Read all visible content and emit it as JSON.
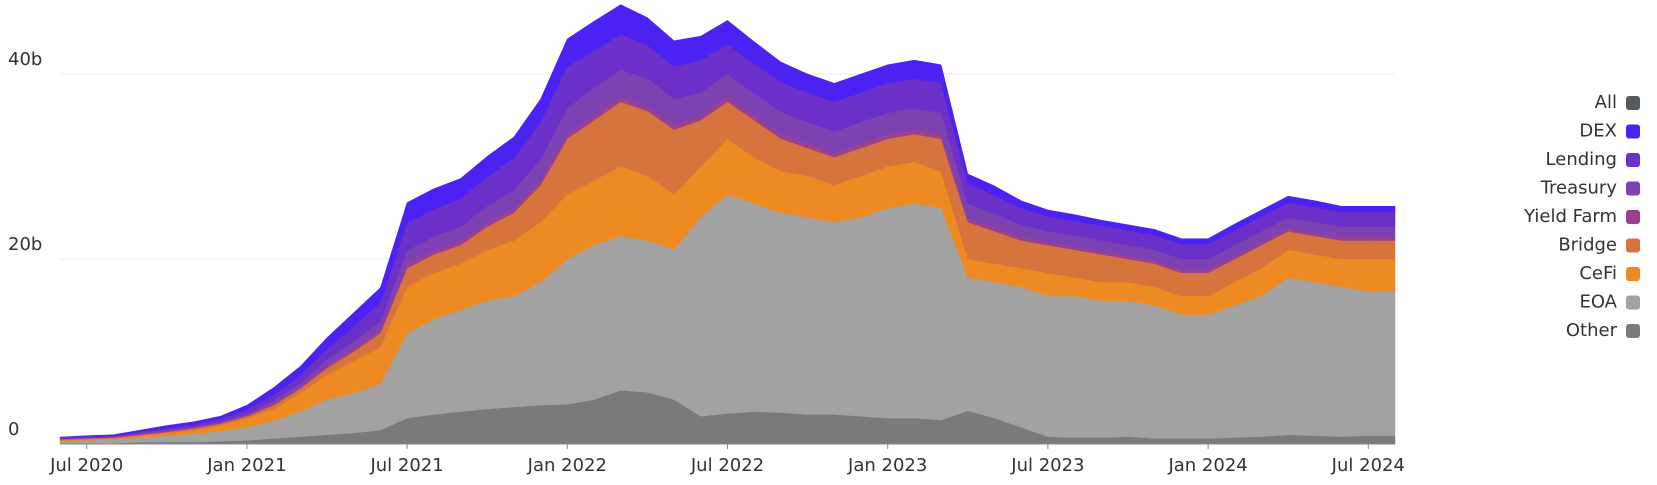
{
  "chart_data": {
    "type": "stacked_area",
    "x": [
      "2020-06",
      "2020-07",
      "2020-08",
      "2020-09",
      "2020-10",
      "2020-11",
      "2020-12",
      "2021-01",
      "2021-02",
      "2021-03",
      "2021-04",
      "2021-05",
      "2021-06",
      "2021-07",
      "2021-08",
      "2021-09",
      "2021-10",
      "2021-11",
      "2021-12",
      "2022-01",
      "2022-02",
      "2022-03",
      "2022-04",
      "2022-05",
      "2022-06",
      "2022-07",
      "2022-08",
      "2022-09",
      "2022-10",
      "2022-11",
      "2022-12",
      "2023-01",
      "2023-02",
      "2023-03",
      "2023-04",
      "2023-05",
      "2023-06",
      "2023-07",
      "2023-08",
      "2023-09",
      "2023-10",
      "2023-11",
      "2023-12",
      "2024-01",
      "2024-02",
      "2024-03",
      "2024-04",
      "2024-05",
      "2024-06",
      "2024-07",
      "2024-08"
    ],
    "xticks": [
      {
        "value": "2020-07",
        "label": "Jul 2020"
      },
      {
        "value": "2021-01",
        "label": "Jan 2021"
      },
      {
        "value": "2021-07",
        "label": "Jul 2021"
      },
      {
        "value": "2022-01",
        "label": "Jan 2022"
      },
      {
        "value": "2022-07",
        "label": "Jul 2022"
      },
      {
        "value": "2023-01",
        "label": "Jan 2023"
      },
      {
        "value": "2023-07",
        "label": "Jul 2023"
      },
      {
        "value": "2024-01",
        "label": "Jan 2024"
      },
      {
        "value": "2024-07",
        "label": "Jul 2024"
      }
    ],
    "ylim": [
      0,
      48
    ],
    "yticks": [
      0,
      {
        "value": 20,
        "label": "20b"
      },
      {
        "value": 40,
        "label": "40b"
      }
    ],
    "grid": true,
    "legend": "right",
    "legend_all": {
      "name": "All",
      "color": "#555a5f"
    },
    "series": [
      {
        "name": "DEX",
        "color": "#4b22f2",
        "values": [
          0.05,
          0.1,
          0.1,
          0.2,
          0.3,
          0.3,
          0.3,
          0.5,
          0.8,
          1.0,
          1.2,
          1.5,
          1.6,
          2.2,
          2.2,
          2.2,
          2.2,
          2.3,
          2.5,
          3.0,
          3.2,
          3.2,
          3.0,
          2.8,
          2.6,
          2.6,
          2.4,
          2.2,
          2.0,
          2.0,
          2.0,
          2.0,
          2.0,
          2.0,
          1.0,
          1.0,
          0.8,
          0.7,
          0.7,
          0.6,
          0.6,
          0.6,
          0.6,
          0.6,
          0.7,
          0.7,
          0.7,
          0.7,
          0.6,
          0.6,
          0.6
        ]
      },
      {
        "name": "Lending",
        "color": "#6a30c8",
        "values": [
          0.1,
          0.1,
          0.1,
          0.1,
          0.2,
          0.2,
          0.3,
          0.4,
          0.6,
          0.8,
          1.2,
          1.6,
          2.0,
          3.0,
          3.0,
          3.0,
          3.2,
          3.5,
          4.0,
          4.5,
          4.0,
          3.8,
          3.6,
          3.5,
          3.5,
          3.2,
          3.2,
          3.2,
          3.2,
          3.2,
          3.2,
          3.2,
          3.2,
          3.2,
          2.2,
          2.0,
          1.8,
          1.6,
          1.6,
          1.6,
          1.6,
          1.6,
          1.6,
          1.6,
          1.6,
          1.6,
          1.6,
          1.6,
          1.6,
          1.6,
          1.6
        ]
      },
      {
        "name": "Treasury",
        "color": "#7c42b2",
        "values": [
          0.05,
          0.05,
          0.05,
          0.1,
          0.1,
          0.1,
          0.1,
          0.2,
          0.3,
          0.4,
          0.6,
          0.8,
          1.0,
          1.5,
          1.5,
          1.6,
          1.8,
          2.0,
          2.3,
          2.8,
          3.0,
          3.0,
          3.0,
          2.8,
          2.5,
          2.5,
          2.4,
          2.4,
          2.3,
          2.3,
          2.3,
          2.3,
          2.3,
          2.3,
          1.6,
          1.5,
          1.3,
          1.2,
          1.2,
          1.2,
          1.2,
          1.2,
          1.2,
          1.2,
          1.2,
          1.2,
          1.2,
          1.2,
          1.2,
          1.2,
          1.2
        ]
      },
      {
        "name": "Yield Farm",
        "color": "#9a408f",
        "values": [
          0.05,
          0.05,
          0.05,
          0.1,
          0.1,
          0.1,
          0.1,
          0.1,
          0.2,
          0.2,
          0.3,
          0.3,
          0.3,
          0.4,
          0.4,
          0.4,
          0.4,
          0.4,
          0.5,
          0.5,
          0.5,
          0.5,
          0.5,
          0.5,
          0.5,
          0.5,
          0.5,
          0.5,
          0.5,
          0.5,
          0.5,
          0.5,
          0.5,
          0.5,
          0.4,
          0.4,
          0.4,
          0.3,
          0.3,
          0.3,
          0.3,
          0.3,
          0.3,
          0.3,
          0.3,
          0.3,
          0.3,
          0.3,
          0.3,
          0.3,
          0.3
        ]
      },
      {
        "name": "Bridge",
        "color": "#d7733c",
        "values": [
          0.1,
          0.1,
          0.1,
          0.1,
          0.1,
          0.2,
          0.2,
          0.2,
          0.4,
          0.5,
          0.7,
          1.0,
          1.5,
          2.0,
          2.0,
          2.0,
          2.5,
          3.0,
          4.0,
          6.0,
          6.5,
          7.0,
          7.0,
          7.0,
          5.0,
          4.0,
          4.0,
          3.5,
          3.0,
          3.0,
          3.0,
          3.0,
          3.0,
          3.5,
          4.0,
          3.5,
          3.0,
          3.0,
          3.0,
          3.0,
          2.5,
          2.5,
          2.5,
          2.5,
          2.5,
          2.5,
          2.0,
          2.0,
          2.0,
          2.0,
          2.0
        ]
      },
      {
        "name": "CeFi",
        "color": "#ee8a22",
        "values": [
          0.1,
          0.1,
          0.1,
          0.2,
          0.3,
          0.4,
          0.6,
          1.0,
          1.3,
          2.0,
          2.7,
          3.5,
          4.0,
          5.0,
          5.0,
          5.0,
          5.5,
          6.0,
          6.5,
          7.0,
          7.0,
          7.5,
          7.0,
          6.0,
          5.5,
          6.0,
          5.0,
          4.5,
          4.5,
          4.0,
          4.5,
          4.5,
          4.5,
          4.0,
          2.0,
          2.0,
          2.0,
          2.5,
          2.0,
          2.0,
          2.0,
          2.0,
          2.0,
          2.0,
          2.5,
          3.0,
          3.0,
          3.0,
          3.0,
          3.5,
          3.5
        ]
      },
      {
        "name": "EOA",
        "color": "#a2a2a2",
        "values": [
          0.2,
          0.3,
          0.4,
          0.5,
          0.7,
          0.9,
          1.1,
          1.4,
          1.9,
          2.7,
          3.8,
          4.3,
          5.0,
          9.2,
          10.3,
          11.0,
          11.7,
          12.0,
          13.3,
          15.7,
          16.7,
          16.7,
          16.4,
          16.2,
          21.5,
          23.7,
          22.5,
          21.6,
          21.3,
          20.8,
          21.5,
          22.7,
          23.2,
          22.9,
          14.4,
          14.7,
          15.2,
          15.2,
          15.3,
          14.8,
          14.7,
          14.4,
          13.4,
          13.4,
          14.3,
          15.2,
          17.0,
          16.6,
          16.2,
          15.6,
          15.6
        ]
      },
      {
        "name": "Other",
        "color": "#7a7a7a",
        "values": [
          0.1,
          0.1,
          0.1,
          0.2,
          0.2,
          0.2,
          0.3,
          0.4,
          0.6,
          0.8,
          1.0,
          1.2,
          1.5,
          2.8,
          3.2,
          3.5,
          3.8,
          4.0,
          4.2,
          4.3,
          4.8,
          5.8,
          5.6,
          4.8,
          3.0,
          3.3,
          3.5,
          3.4,
          3.2,
          3.2,
          3.0,
          2.8,
          2.8,
          2.6,
          3.6,
          2.8,
          1.8,
          0.8,
          0.7,
          0.7,
          0.8,
          0.6,
          0.6,
          0.6,
          0.7,
          0.8,
          1.0,
          0.9,
          0.8,
          0.9,
          0.9
        ]
      }
    ]
  }
}
